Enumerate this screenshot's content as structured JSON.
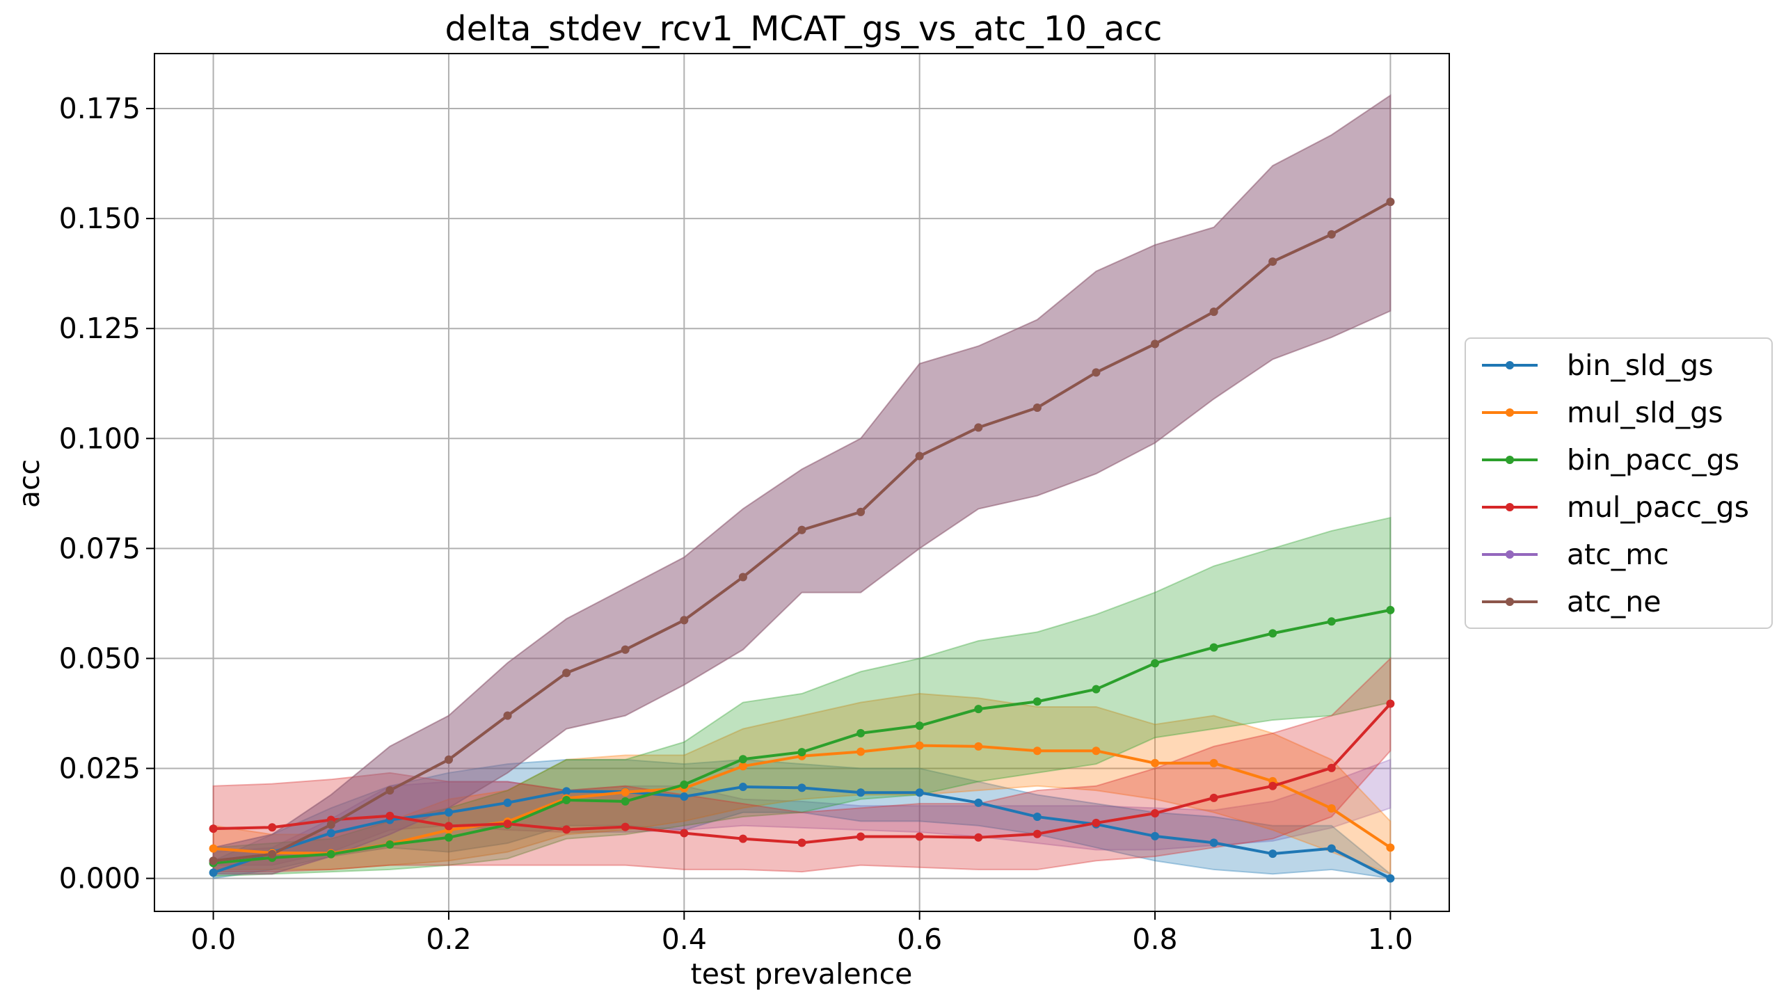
{
  "chart_data": {
    "type": "line",
    "title": "delta_stdev_rcv1_MCAT_gs_vs_atc_10_acc",
    "xlabel": "test prevalence",
    "ylabel": "acc",
    "xlim": [
      -0.05,
      1.05
    ],
    "ylim": [
      -0.0075,
      0.1875
    ],
    "grid": true,
    "legend_position": "right, outside",
    "xticks": [
      0.0,
      0.2,
      0.4,
      0.6,
      0.8,
      1.0
    ],
    "xtick_labels": [
      "0.0",
      "0.2",
      "0.4",
      "0.6",
      "0.8",
      "1.0"
    ],
    "yticks": [
      0.0,
      0.025,
      0.05,
      0.075,
      0.1,
      0.125,
      0.15,
      0.175
    ],
    "ytick_labels": [
      "0.000",
      "0.025",
      "0.050",
      "0.075",
      "0.100",
      "0.125",
      "0.150",
      "0.175"
    ],
    "x": [
      0.0,
      0.05,
      0.1,
      0.15,
      0.2,
      0.25,
      0.3,
      0.35,
      0.4,
      0.45,
      0.5,
      0.55,
      0.6,
      0.65,
      0.7,
      0.75,
      0.8,
      0.85,
      0.9,
      0.95,
      1.0
    ],
    "series": [
      {
        "name": "bin_sld_gs",
        "color": "#1f77b4",
        "values": [
          0.0013,
          0.0059,
          0.0103,
          0.0133,
          0.015,
          0.0172,
          0.0198,
          0.0197,
          0.0186,
          0.0208,
          0.0206,
          0.0195,
          0.0195,
          0.0172,
          0.014,
          0.0123,
          0.0096,
          0.0081,
          0.0056,
          0.0068,
          0.0
        ],
        "lower": [
          0.0,
          0.002,
          0.005,
          0.007,
          0.006,
          0.008,
          0.012,
          0.012,
          0.011,
          0.015,
          0.015,
          0.013,
          0.013,
          0.012,
          0.01,
          0.007,
          0.004,
          0.002,
          0.001,
          0.002,
          0.0
        ],
        "upper": [
          0.004,
          0.01,
          0.016,
          0.021,
          0.024,
          0.026,
          0.027,
          0.027,
          0.026,
          0.027,
          0.026,
          0.025,
          0.025,
          0.022,
          0.019,
          0.017,
          0.015,
          0.014,
          0.012,
          0.012,
          0.001
        ]
      },
      {
        "name": "mul_sld_gs",
        "color": "#ff7f0e",
        "values": [
          0.0068,
          0.0058,
          0.0057,
          0.0078,
          0.011,
          0.0129,
          0.0182,
          0.0196,
          0.0205,
          0.0255,
          0.0278,
          0.0288,
          0.0302,
          0.03,
          0.029,
          0.029,
          0.0262,
          0.0262,
          0.0221,
          0.0159,
          0.007
        ],
        "lower": [
          0.002,
          0.002,
          0.002,
          0.003,
          0.004,
          0.006,
          0.01,
          0.011,
          0.013,
          0.016,
          0.018,
          0.019,
          0.019,
          0.02,
          0.021,
          0.02,
          0.018,
          0.015,
          0.011,
          0.006,
          0.001
        ],
        "upper": [
          0.012,
          0.01,
          0.01,
          0.013,
          0.018,
          0.02,
          0.027,
          0.028,
          0.028,
          0.034,
          0.037,
          0.04,
          0.042,
          0.041,
          0.039,
          0.039,
          0.035,
          0.037,
          0.033,
          0.027,
          0.013
        ]
      },
      {
        "name": "bin_pacc_gs",
        "color": "#2ca02c",
        "values": [
          0.0035,
          0.0047,
          0.0055,
          0.0077,
          0.0093,
          0.0122,
          0.0178,
          0.0175,
          0.0213,
          0.0271,
          0.0287,
          0.033,
          0.0347,
          0.0385,
          0.0402,
          0.043,
          0.0489,
          0.0525,
          0.0557,
          0.0584,
          0.061
        ],
        "lower": [
          0.0005,
          0.001,
          0.0015,
          0.002,
          0.003,
          0.0045,
          0.009,
          0.01,
          0.012,
          0.014,
          0.015,
          0.018,
          0.019,
          0.022,
          0.024,
          0.026,
          0.032,
          0.034,
          0.036,
          0.037,
          0.04
        ],
        "upper": [
          0.007,
          0.008,
          0.009,
          0.013,
          0.016,
          0.02,
          0.027,
          0.027,
          0.031,
          0.04,
          0.042,
          0.047,
          0.05,
          0.054,
          0.056,
          0.06,
          0.065,
          0.071,
          0.075,
          0.079,
          0.082
        ]
      },
      {
        "name": "mul_pacc_gs",
        "color": "#d62728",
        "values": [
          0.0113,
          0.0116,
          0.0133,
          0.0142,
          0.0119,
          0.0124,
          0.0111,
          0.0117,
          0.0103,
          0.009,
          0.0081,
          0.0095,
          0.0095,
          0.0093,
          0.0101,
          0.0126,
          0.0148,
          0.0183,
          0.021,
          0.0251,
          0.0397
        ],
        "lower": [
          0.0015,
          0.0015,
          0.002,
          0.003,
          0.003,
          0.003,
          0.003,
          0.003,
          0.002,
          0.002,
          0.0015,
          0.003,
          0.0025,
          0.002,
          0.002,
          0.004,
          0.005,
          0.007,
          0.009,
          0.014,
          0.029
        ],
        "upper": [
          0.021,
          0.0215,
          0.0225,
          0.024,
          0.022,
          0.022,
          0.02,
          0.021,
          0.019,
          0.017,
          0.015,
          0.016,
          0.017,
          0.017,
          0.02,
          0.021,
          0.025,
          0.03,
          0.033,
          0.037,
          0.05
        ]
      },
      {
        "name": "atc_mc",
        "color": "#9467bd",
        "values": [
          0.004,
          0.0055,
          0.0122,
          0.02,
          0.027,
          0.037,
          0.0467,
          0.052,
          0.0587,
          0.0685,
          0.0792,
          0.0833,
          0.096,
          0.1025,
          0.107,
          0.115,
          0.1215,
          0.1288,
          0.1402,
          0.1464,
          0.1538
        ],
        "lower": [
          0.001,
          0.001,
          0.005,
          0.01,
          0.016,
          0.024,
          0.034,
          0.037,
          0.044,
          0.052,
          0.065,
          0.065,
          0.075,
          0.084,
          0.087,
          0.092,
          0.099,
          0.109,
          0.118,
          0.123,
          0.129
        ],
        "upper": [
          0.007,
          0.01,
          0.019,
          0.03,
          0.037,
          0.049,
          0.059,
          0.066,
          0.073,
          0.084,
          0.093,
          0.1,
          0.117,
          0.121,
          0.127,
          0.138,
          0.144,
          0.148,
          0.162,
          0.169,
          0.178
        ]
      },
      {
        "name": "atc_ne",
        "color": "#8c564b",
        "values": [
          0.004,
          0.0055,
          0.0122,
          0.02,
          0.027,
          0.037,
          0.0467,
          0.052,
          0.0587,
          0.0685,
          0.0792,
          0.0833,
          0.096,
          0.1025,
          0.107,
          0.115,
          0.1215,
          0.1288,
          0.1402,
          0.1464,
          0.1538
        ],
        "lower": [
          0.001,
          0.001,
          0.005,
          0.01,
          0.016,
          0.024,
          0.034,
          0.037,
          0.044,
          0.052,
          0.065,
          0.065,
          0.075,
          0.084,
          0.087,
          0.092,
          0.099,
          0.109,
          0.118,
          0.123,
          0.129
        ],
        "upper": [
          0.007,
          0.01,
          0.019,
          0.03,
          0.037,
          0.049,
          0.059,
          0.066,
          0.073,
          0.084,
          0.093,
          0.1,
          0.117,
          0.121,
          0.127,
          0.138,
          0.144,
          0.148,
          0.162,
          0.169,
          0.178
        ]
      }
    ],
    "extra_bands": [
      {
        "name": "purple-band-low",
        "color": "#9467bd",
        "lower": [
          0.003,
          0.003,
          0.006,
          0.011,
          0.012,
          0.011,
          0.0105,
          0.0105,
          0.011,
          0.012,
          0.0115,
          0.011,
          0.0105,
          0.0095,
          0.008,
          0.0065,
          0.0065,
          0.0075,
          0.0085,
          0.0115,
          0.016
        ],
        "upper": [
          0.006,
          0.007,
          0.0135,
          0.021,
          0.022,
          0.022,
          0.02,
          0.021,
          0.021,
          0.018,
          0.0175,
          0.0165,
          0.0165,
          0.0165,
          0.0165,
          0.0165,
          0.016,
          0.0155,
          0.0175,
          0.022,
          0.027
        ]
      }
    ]
  }
}
